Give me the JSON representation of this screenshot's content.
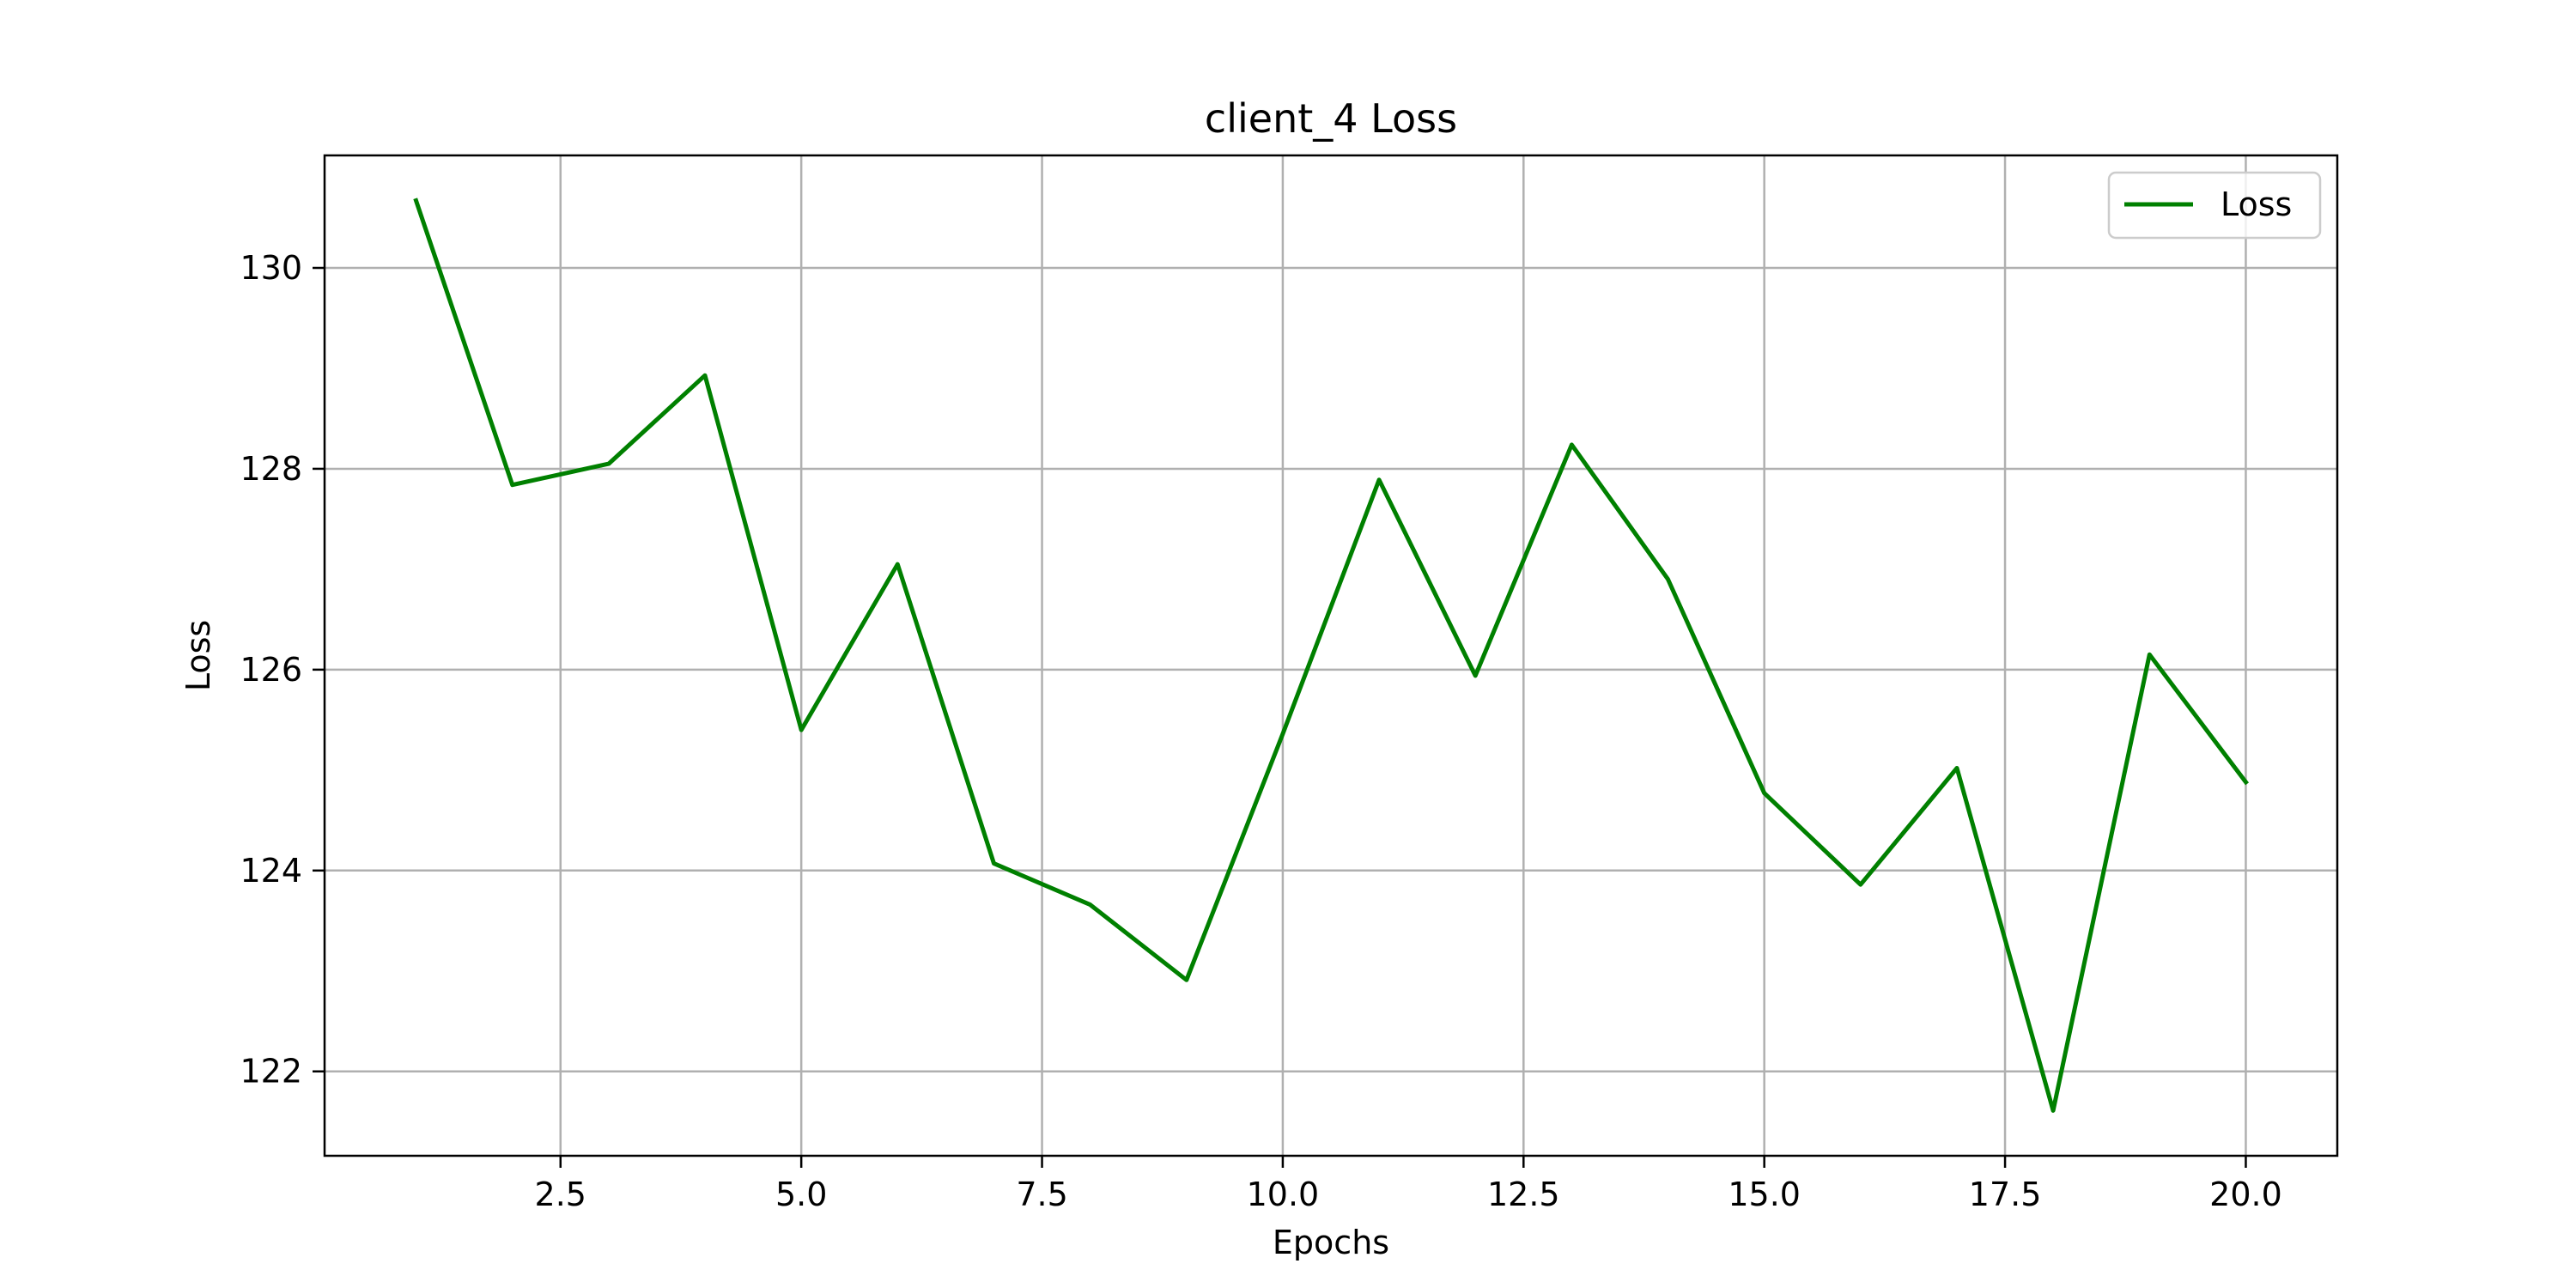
{
  "chart_data": {
    "type": "line",
    "title": "client_4 Loss",
    "xlabel": "Epochs",
    "ylabel": "Loss",
    "xlim": [
      0.05,
      20.95
    ],
    "ylim": [
      121.16,
      131.12
    ],
    "xticks": [
      2.5,
      5.0,
      7.5,
      10.0,
      12.5,
      15.0,
      17.5,
      20.0
    ],
    "xtick_labels": [
      "2.5",
      "5.0",
      "7.5",
      "10.0",
      "12.5",
      "15.0",
      "17.5",
      "20.0"
    ],
    "yticks": [
      122,
      124,
      126,
      128,
      130
    ],
    "ytick_labels": [
      "122",
      "124",
      "126",
      "128",
      "130"
    ],
    "grid": true,
    "legend_position": "top-right",
    "series": [
      {
        "name": "Loss",
        "color": "#008000",
        "x": [
          1,
          2,
          3,
          4,
          5,
          6,
          7,
          8,
          9,
          10,
          11,
          12,
          13,
          14,
          15,
          16,
          17,
          18,
          19,
          20
        ],
        "y": [
          130.67,
          127.84,
          128.05,
          128.93,
          125.4,
          127.05,
          124.07,
          123.66,
          122.91,
          125.36,
          127.89,
          125.94,
          128.24,
          126.9,
          124.77,
          123.86,
          125.02,
          121.61,
          126.15,
          124.88
        ]
      }
    ]
  }
}
